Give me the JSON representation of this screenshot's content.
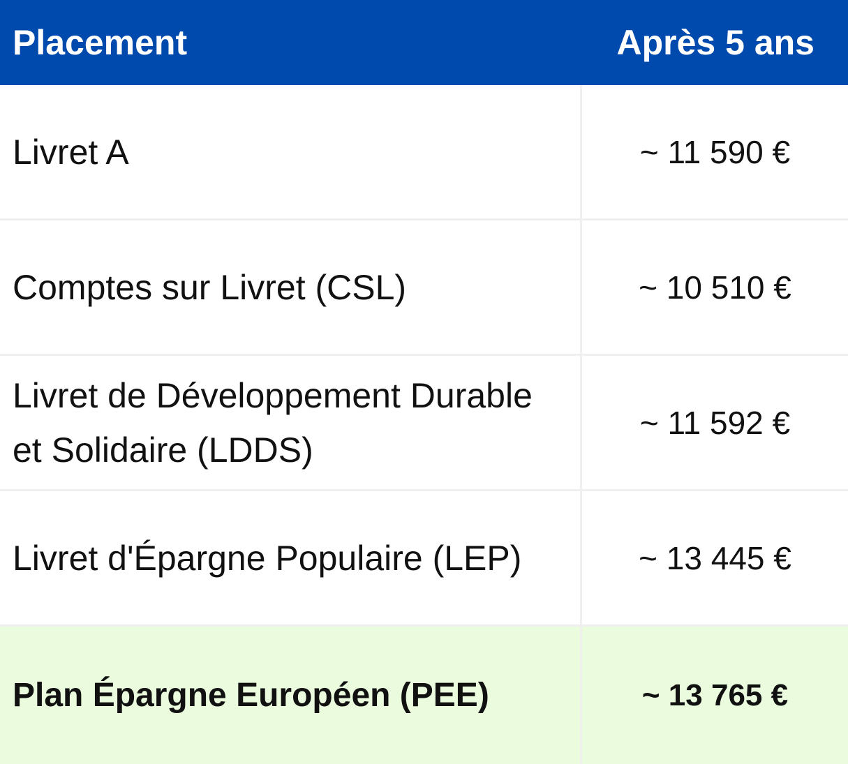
{
  "header": {
    "col1": "Placement",
    "col2": "Après 5 ans"
  },
  "rows": [
    {
      "name": "Livret A",
      "value": "~ 11 590 €"
    },
    {
      "name": "Comptes sur Livret (CSL)",
      "value": "~ 10 510 €"
    },
    {
      "name": "Livret de Développement Durable et Solidaire (LDDS)",
      "value": "~ 11 592 €"
    },
    {
      "name": "Livret d'Épargne Populaire (LEP)",
      "value": "~ 13 445 €"
    },
    {
      "name": "Plan Épargne Européen (PEE)",
      "value": "~ 13 765  €"
    }
  ],
  "colors": {
    "header_bg": "#004aad",
    "header_text": "#ffffff",
    "highlight_bg": "#eafcdd",
    "grid_line": "#efefef"
  }
}
